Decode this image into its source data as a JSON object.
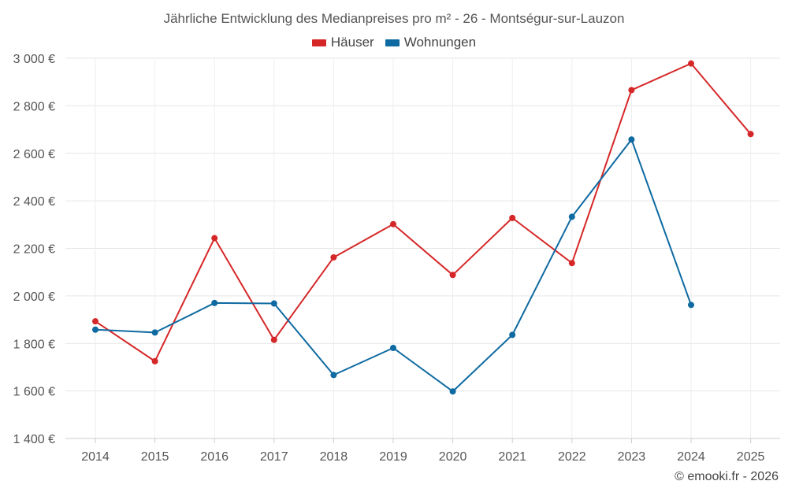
{
  "chart_data": {
    "type": "line",
    "title": "Jährliche Entwicklung des Medianpreises pro m² - 26 - Montségur-sur-Lauzon",
    "x": [
      "2014",
      "2015",
      "2016",
      "2017",
      "2018",
      "2019",
      "2020",
      "2021",
      "2022",
      "2023",
      "2024",
      "2025"
    ],
    "series": [
      {
        "name": "Häuser",
        "color": "#d62728",
        "values": [
          1893,
          1725,
          2243,
          1815,
          2162,
          2302,
          2088,
          2328,
          2138,
          2866,
          2978,
          2681
        ]
      },
      {
        "name": "Wohnungen",
        "color": "#0e6aa1",
        "values": [
          1858,
          1846,
          1970,
          1968,
          1667,
          1781,
          1598,
          1836,
          2333,
          2658,
          1962,
          null
        ]
      }
    ],
    "ylim": [
      1400,
      3000
    ],
    "yticks": [
      1400,
      1600,
      1800,
      2000,
      2200,
      2400,
      2600,
      2800,
      3000
    ],
    "ytick_labels": [
      "1 400 €",
      "1 600 €",
      "1 800 €",
      "2 000 €",
      "2 200 €",
      "2 400 €",
      "2 600 €",
      "2 800 €",
      "3 000 €"
    ],
    "grid": true,
    "legend_position": "top-center"
  },
  "copyright": "© emooki.fr - 2026"
}
